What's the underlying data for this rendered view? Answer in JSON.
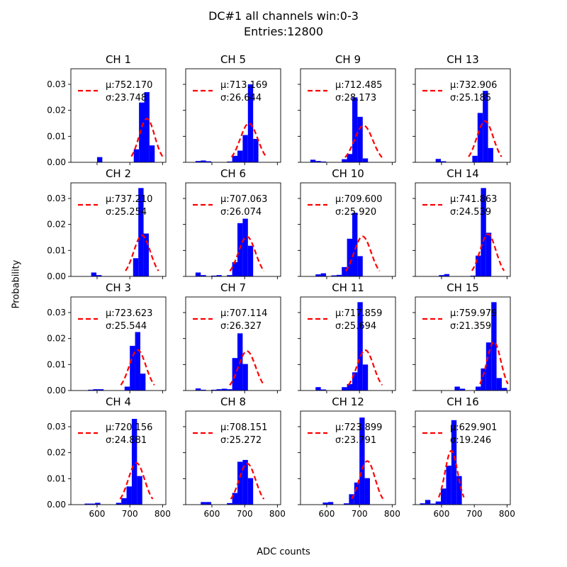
{
  "figure": {
    "title_line1": "DC#1 all channels win:0-3",
    "title_line2": "Entries:12800",
    "xlabel": "ADC counts",
    "ylabel": "Probability"
  },
  "colors": {
    "histogram": "#0000ff",
    "fit": "#ff0000"
  },
  "chart_data": {
    "type": "bar",
    "layout": "4x4 grid, shared axes",
    "xlim": [
      520,
      810
    ],
    "ylim": [
      0,
      0.036
    ],
    "xticks": [
      600,
      700,
      800
    ],
    "yticks": [
      0.0,
      0.01,
      0.02,
      0.03
    ],
    "ytick_labels": [
      "0.00",
      "0.01",
      "0.02",
      "0.03"
    ],
    "bin_width": 16,
    "panels": [
      {
        "title": "CH 1",
        "mu_label": "μ:752.170",
        "sigma_label": "σ:23.748",
        "mu": 752.17,
        "sigma": 23.748,
        "bins": [
          [
            600,
            0.002
          ],
          [
            712,
            0.005
          ],
          [
            728,
            0.023
          ],
          [
            744,
            0.027
          ],
          [
            760,
            0.0065
          ]
        ]
      },
      {
        "title": "CH 2",
        "mu_label": "μ:737.210",
        "sigma_label": "σ:25.254",
        "mu": 737.21,
        "sigma": 25.254,
        "bins": [
          [
            582,
            0.0015
          ],
          [
            598,
            0.0005
          ],
          [
            710,
            0.007
          ],
          [
            726,
            0.034
          ],
          [
            742,
            0.0165
          ]
        ]
      },
      {
        "title": "CH 3",
        "mu_label": "μ:723.623",
        "sigma_label": "σ:25.544",
        "mu": 723.623,
        "sigma": 25.544,
        "bins": [
          [
            572,
            0.0003
          ],
          [
            588,
            0.0005
          ],
          [
            604,
            0.0005
          ],
          [
            684,
            0.0015
          ],
          [
            700,
            0.0172
          ],
          [
            716,
            0.0225
          ],
          [
            732,
            0.0065
          ]
        ]
      },
      {
        "title": "CH 4",
        "mu_label": "μ:720.156",
        "sigma_label": "σ:24.881",
        "mu": 720.156,
        "sigma": 24.881,
        "bins": [
          [
            562,
            0.0004
          ],
          [
            578,
            0.0004
          ],
          [
            594,
            0.0007
          ],
          [
            658,
            0.0007
          ],
          [
            674,
            0.0025
          ],
          [
            690,
            0.007
          ],
          [
            706,
            0.033
          ],
          [
            722,
            0.011
          ]
        ]
      },
      {
        "title": "CH 5",
        "mu_label": "μ:713.169",
        "sigma_label": "σ:26.644",
        "mu": 713.169,
        "sigma": 26.644,
        "bins": [
          [
            550,
            0.0005
          ],
          [
            566,
            0.0007
          ],
          [
            582,
            0.0004
          ],
          [
            646,
            0.0003
          ],
          [
            662,
            0.0025
          ],
          [
            678,
            0.0045
          ],
          [
            694,
            0.0105
          ],
          [
            710,
            0.03
          ],
          [
            726,
            0.009
          ]
        ]
      },
      {
        "title": "CH 6",
        "mu_label": "μ:707.063",
        "sigma_label": "σ:26.074",
        "mu": 707.063,
        "sigma": 26.074,
        "bins": [
          [
            550,
            0.0015
          ],
          [
            566,
            0.0005
          ],
          [
            598,
            0.0003
          ],
          [
            614,
            0.0005
          ],
          [
            646,
            0.0005
          ],
          [
            662,
            0.0055
          ],
          [
            678,
            0.0205
          ],
          [
            694,
            0.0222
          ],
          [
            710,
            0.0118
          ]
        ]
      },
      {
        "title": "CH 7",
        "mu_label": "μ:707.114",
        "sigma_label": "σ:26.327",
        "mu": 707.114,
        "sigma": 26.327,
        "bins": [
          [
            550,
            0.0008
          ],
          [
            566,
            0.0003
          ],
          [
            598,
            0.0003
          ],
          [
            614,
            0.0005
          ],
          [
            630,
            0.0007
          ],
          [
            646,
            0.0005
          ],
          [
            662,
            0.0125
          ],
          [
            678,
            0.022
          ],
          [
            694,
            0.0102
          ]
        ]
      },
      {
        "title": "CH 8",
        "mu_label": "μ:708.151",
        "sigma_label": "σ:25.272",
        "mu": 708.151,
        "sigma": 25.272,
        "bins": [
          [
            566,
            0.001
          ],
          [
            582,
            0.001
          ],
          [
            646,
            0.0006
          ],
          [
            662,
            0.0045
          ],
          [
            678,
            0.0165
          ],
          [
            694,
            0.0172
          ],
          [
            710,
            0.0102
          ]
        ]
      },
      {
        "title": "CH 9",
        "mu_label": "μ:712.485",
        "sigma_label": "σ:28.173",
        "mu": 712.485,
        "sigma": 28.173,
        "bins": [
          [
            550,
            0.001
          ],
          [
            566,
            0.0005
          ],
          [
            582,
            0.0003
          ],
          [
            646,
            0.0012
          ],
          [
            662,
            0.0032
          ],
          [
            678,
            0.025
          ],
          [
            694,
            0.0175
          ],
          [
            710,
            0.0015
          ]
        ]
      },
      {
        "title": "CH 10",
        "mu_label": "μ:709.600",
        "sigma_label": "σ:25.920",
        "mu": 709.6,
        "sigma": 25.92,
        "bins": [
          [
            566,
            0.0008
          ],
          [
            582,
            0.0012
          ],
          [
            614,
            0.0004
          ],
          [
            630,
            0.0006
          ],
          [
            646,
            0.0036
          ],
          [
            662,
            0.0145
          ],
          [
            678,
            0.0245
          ],
          [
            694,
            0.0078
          ]
        ]
      },
      {
        "title": "CH 11",
        "mu_label": "μ:717.859",
        "sigma_label": "σ:25.694",
        "mu": 717.859,
        "sigma": 25.694,
        "bins": [
          [
            566,
            0.0013
          ],
          [
            582,
            0.0004
          ],
          [
            646,
            0.0013
          ],
          [
            662,
            0.0025
          ],
          [
            678,
            0.007
          ],
          [
            694,
            0.034
          ],
          [
            710,
            0.01
          ]
        ]
      },
      {
        "title": "CH 12",
        "mu_label": "μ:723.899",
        "sigma_label": "σ:23.791",
        "mu": 723.899,
        "sigma": 23.791,
        "bins": [
          [
            588,
            0.0008
          ],
          [
            604,
            0.001
          ],
          [
            652,
            0.0005
          ],
          [
            668,
            0.004
          ],
          [
            684,
            0.0085
          ],
          [
            700,
            0.0335
          ],
          [
            716,
            0.0102
          ]
        ]
      },
      {
        "title": "CH 13",
        "mu_label": "μ:732.906",
        "sigma_label": "σ:25.185",
        "mu": 732.906,
        "sigma": 25.185,
        "bins": [
          [
            582,
            0.0013
          ],
          [
            598,
            0.0004
          ],
          [
            694,
            0.0025
          ],
          [
            710,
            0.019
          ],
          [
            726,
            0.0275
          ],
          [
            742,
            0.0055
          ]
        ]
      },
      {
        "title": "CH 14",
        "mu_label": "μ:741.863",
        "sigma_label": "σ:24.539",
        "mu": 741.863,
        "sigma": 24.539,
        "bins": [
          [
            592,
            0.0005
          ],
          [
            608,
            0.0009
          ],
          [
            688,
            0.0003
          ],
          [
            704,
            0.008
          ],
          [
            720,
            0.034
          ],
          [
            736,
            0.0168
          ]
        ]
      },
      {
        "title": "CH 15",
        "mu_label": "μ:759.979",
        "sigma_label": "σ:21.359",
        "mu": 759.979,
        "sigma": 21.359,
        "bins": [
          [
            640,
            0.0015
          ],
          [
            656,
            0.0007
          ],
          [
            704,
            0.0015
          ],
          [
            720,
            0.0085
          ],
          [
            736,
            0.0185
          ],
          [
            752,
            0.034
          ],
          [
            768,
            0.0048
          ],
          [
            784,
            0.001
          ]
        ]
      },
      {
        "title": "CH 16",
        "mu_label": "μ:629.901",
        "sigma_label": "σ:19.246",
        "mu": 629.901,
        "sigma": 19.246,
        "bins": [
          [
            534,
            0.0005
          ],
          [
            550,
            0.0018
          ],
          [
            566,
            0.0004
          ],
          [
            582,
            0.0012
          ],
          [
            598,
            0.0062
          ],
          [
            614,
            0.015
          ],
          [
            630,
            0.0325
          ],
          [
            646,
            0.011
          ]
        ]
      }
    ]
  }
}
